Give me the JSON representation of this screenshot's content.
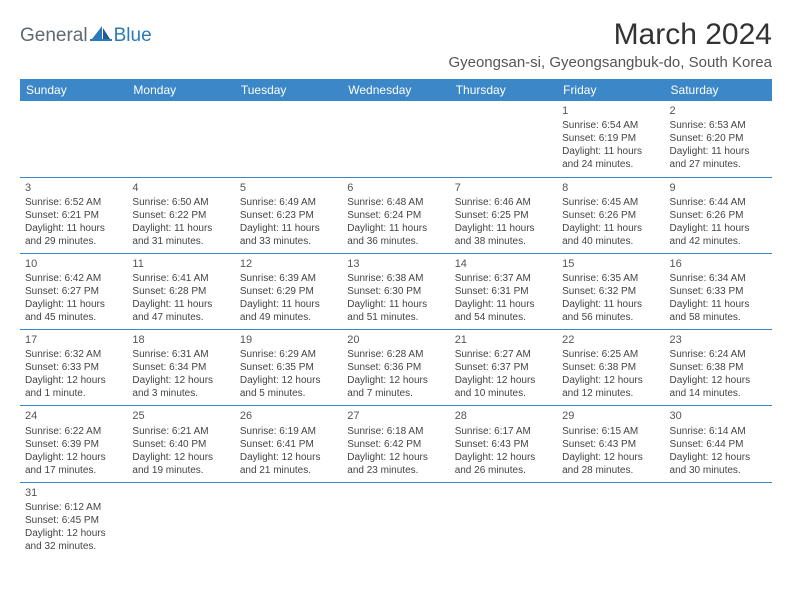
{
  "brand": {
    "part1": "General",
    "part2": "Blue"
  },
  "title": "March 2024",
  "subtitle": "Gyeongsan-si, Gyeongsangbuk-do, South Korea",
  "colors": {
    "header_bg": "#3b87c8",
    "header_fg": "#ffffff",
    "rule": "#3b87c8",
    "title_color": "#333333",
    "text_color": "#444444",
    "logo_gray": "#5f6a72",
    "logo_blue": "#2a7ab9",
    "page_bg": "#ffffff"
  },
  "fonts": {
    "title_pt": 30,
    "subtitle_pt": 15,
    "dayhead_pt": 12,
    "cell_pt": 10
  },
  "day_headers": [
    "Sunday",
    "Monday",
    "Tuesday",
    "Wednesday",
    "Thursday",
    "Friday",
    "Saturday"
  ],
  "weeks": [
    [
      null,
      null,
      null,
      null,
      null,
      {
        "n": "1",
        "sunrise": "Sunrise: 6:54 AM",
        "sunset": "Sunset: 6:19 PM",
        "day1": "Daylight: 11 hours",
        "day2": "and 24 minutes."
      },
      {
        "n": "2",
        "sunrise": "Sunrise: 6:53 AM",
        "sunset": "Sunset: 6:20 PM",
        "day1": "Daylight: 11 hours",
        "day2": "and 27 minutes."
      }
    ],
    [
      {
        "n": "3",
        "sunrise": "Sunrise: 6:52 AM",
        "sunset": "Sunset: 6:21 PM",
        "day1": "Daylight: 11 hours",
        "day2": "and 29 minutes."
      },
      {
        "n": "4",
        "sunrise": "Sunrise: 6:50 AM",
        "sunset": "Sunset: 6:22 PM",
        "day1": "Daylight: 11 hours",
        "day2": "and 31 minutes."
      },
      {
        "n": "5",
        "sunrise": "Sunrise: 6:49 AM",
        "sunset": "Sunset: 6:23 PM",
        "day1": "Daylight: 11 hours",
        "day2": "and 33 minutes."
      },
      {
        "n": "6",
        "sunrise": "Sunrise: 6:48 AM",
        "sunset": "Sunset: 6:24 PM",
        "day1": "Daylight: 11 hours",
        "day2": "and 36 minutes."
      },
      {
        "n": "7",
        "sunrise": "Sunrise: 6:46 AM",
        "sunset": "Sunset: 6:25 PM",
        "day1": "Daylight: 11 hours",
        "day2": "and 38 minutes."
      },
      {
        "n": "8",
        "sunrise": "Sunrise: 6:45 AM",
        "sunset": "Sunset: 6:26 PM",
        "day1": "Daylight: 11 hours",
        "day2": "and 40 minutes."
      },
      {
        "n": "9",
        "sunrise": "Sunrise: 6:44 AM",
        "sunset": "Sunset: 6:26 PM",
        "day1": "Daylight: 11 hours",
        "day2": "and 42 minutes."
      }
    ],
    [
      {
        "n": "10",
        "sunrise": "Sunrise: 6:42 AM",
        "sunset": "Sunset: 6:27 PM",
        "day1": "Daylight: 11 hours",
        "day2": "and 45 minutes."
      },
      {
        "n": "11",
        "sunrise": "Sunrise: 6:41 AM",
        "sunset": "Sunset: 6:28 PM",
        "day1": "Daylight: 11 hours",
        "day2": "and 47 minutes."
      },
      {
        "n": "12",
        "sunrise": "Sunrise: 6:39 AM",
        "sunset": "Sunset: 6:29 PM",
        "day1": "Daylight: 11 hours",
        "day2": "and 49 minutes."
      },
      {
        "n": "13",
        "sunrise": "Sunrise: 6:38 AM",
        "sunset": "Sunset: 6:30 PM",
        "day1": "Daylight: 11 hours",
        "day2": "and 51 minutes."
      },
      {
        "n": "14",
        "sunrise": "Sunrise: 6:37 AM",
        "sunset": "Sunset: 6:31 PM",
        "day1": "Daylight: 11 hours",
        "day2": "and 54 minutes."
      },
      {
        "n": "15",
        "sunrise": "Sunrise: 6:35 AM",
        "sunset": "Sunset: 6:32 PM",
        "day1": "Daylight: 11 hours",
        "day2": "and 56 minutes."
      },
      {
        "n": "16",
        "sunrise": "Sunrise: 6:34 AM",
        "sunset": "Sunset: 6:33 PM",
        "day1": "Daylight: 11 hours",
        "day2": "and 58 minutes."
      }
    ],
    [
      {
        "n": "17",
        "sunrise": "Sunrise: 6:32 AM",
        "sunset": "Sunset: 6:33 PM",
        "day1": "Daylight: 12 hours",
        "day2": "and 1 minute."
      },
      {
        "n": "18",
        "sunrise": "Sunrise: 6:31 AM",
        "sunset": "Sunset: 6:34 PM",
        "day1": "Daylight: 12 hours",
        "day2": "and 3 minutes."
      },
      {
        "n": "19",
        "sunrise": "Sunrise: 6:29 AM",
        "sunset": "Sunset: 6:35 PM",
        "day1": "Daylight: 12 hours",
        "day2": "and 5 minutes."
      },
      {
        "n": "20",
        "sunrise": "Sunrise: 6:28 AM",
        "sunset": "Sunset: 6:36 PM",
        "day1": "Daylight: 12 hours",
        "day2": "and 7 minutes."
      },
      {
        "n": "21",
        "sunrise": "Sunrise: 6:27 AM",
        "sunset": "Sunset: 6:37 PM",
        "day1": "Daylight: 12 hours",
        "day2": "and 10 minutes."
      },
      {
        "n": "22",
        "sunrise": "Sunrise: 6:25 AM",
        "sunset": "Sunset: 6:38 PM",
        "day1": "Daylight: 12 hours",
        "day2": "and 12 minutes."
      },
      {
        "n": "23",
        "sunrise": "Sunrise: 6:24 AM",
        "sunset": "Sunset: 6:38 PM",
        "day1": "Daylight: 12 hours",
        "day2": "and 14 minutes."
      }
    ],
    [
      {
        "n": "24",
        "sunrise": "Sunrise: 6:22 AM",
        "sunset": "Sunset: 6:39 PM",
        "day1": "Daylight: 12 hours",
        "day2": "and 17 minutes."
      },
      {
        "n": "25",
        "sunrise": "Sunrise: 6:21 AM",
        "sunset": "Sunset: 6:40 PM",
        "day1": "Daylight: 12 hours",
        "day2": "and 19 minutes."
      },
      {
        "n": "26",
        "sunrise": "Sunrise: 6:19 AM",
        "sunset": "Sunset: 6:41 PM",
        "day1": "Daylight: 12 hours",
        "day2": "and 21 minutes."
      },
      {
        "n": "27",
        "sunrise": "Sunrise: 6:18 AM",
        "sunset": "Sunset: 6:42 PM",
        "day1": "Daylight: 12 hours",
        "day2": "and 23 minutes."
      },
      {
        "n": "28",
        "sunrise": "Sunrise: 6:17 AM",
        "sunset": "Sunset: 6:43 PM",
        "day1": "Daylight: 12 hours",
        "day2": "and 26 minutes."
      },
      {
        "n": "29",
        "sunrise": "Sunrise: 6:15 AM",
        "sunset": "Sunset: 6:43 PM",
        "day1": "Daylight: 12 hours",
        "day2": "and 28 minutes."
      },
      {
        "n": "30",
        "sunrise": "Sunrise: 6:14 AM",
        "sunset": "Sunset: 6:44 PM",
        "day1": "Daylight: 12 hours",
        "day2": "and 30 minutes."
      }
    ],
    [
      {
        "n": "31",
        "sunrise": "Sunrise: 6:12 AM",
        "sunset": "Sunset: 6:45 PM",
        "day1": "Daylight: 12 hours",
        "day2": "and 32 minutes."
      },
      null,
      null,
      null,
      null,
      null,
      null
    ]
  ]
}
